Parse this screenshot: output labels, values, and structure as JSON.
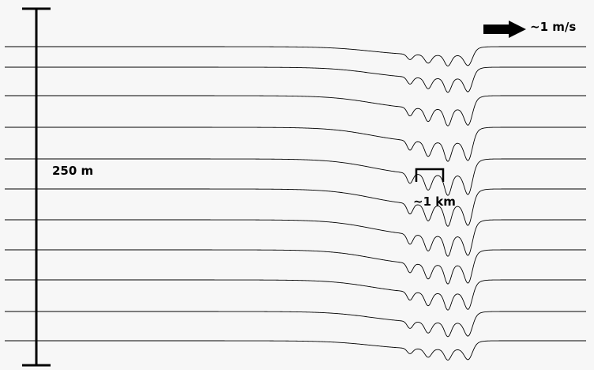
{
  "labels": {
    "depth_scale": "250 m",
    "width_scale": "~1 km",
    "velocity_scale": "~1 m/s"
  },
  "colors": {
    "upper_flow": "#2166ac",
    "lower_flow": "#b2182b",
    "background": "#f7f7f7",
    "isopycnal": "#000000"
  },
  "isopycnal_count": 11
}
